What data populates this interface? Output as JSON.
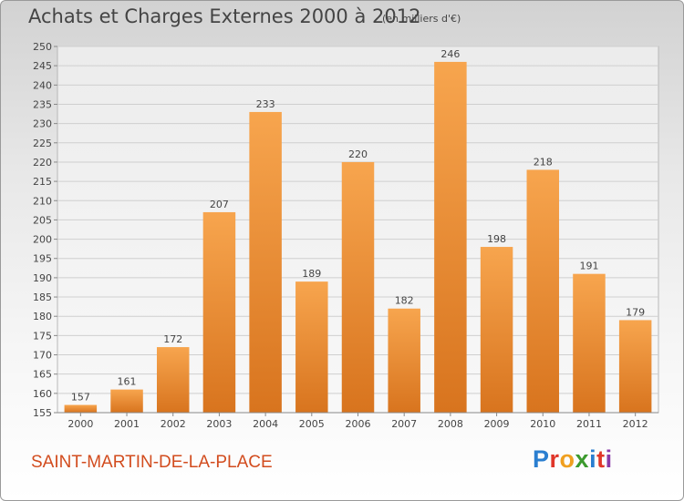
{
  "header": {
    "title": "Achats et Charges Externes 2000 à 2012",
    "subtitle": "(en milliers d'€)"
  },
  "footer": {
    "place": "SAINT-MARTIN-DE-LA-PLACE",
    "logo_letters": [
      "P",
      "r",
      "o",
      "x",
      "i",
      "t",
      "i"
    ]
  },
  "colors": {
    "bar_light": "#f7a54e",
    "bar_dark": "#d8741e",
    "place_text": "#d24c1e"
  },
  "chart_data": {
    "type": "bar",
    "title": "Achats et Charges Externes 2000 à 2012",
    "subtitle": "(en milliers d'€)",
    "categories": [
      "2000",
      "2001",
      "2002",
      "2003",
      "2004",
      "2005",
      "2006",
      "2007",
      "2008",
      "2009",
      "2010",
      "2011",
      "2012"
    ],
    "values": [
      157,
      161,
      172,
      207,
      233,
      189,
      220,
      182,
      246,
      198,
      218,
      191,
      179
    ],
    "ylim": [
      155,
      250
    ],
    "yticks": [
      155,
      160,
      165,
      170,
      175,
      180,
      185,
      190,
      195,
      200,
      205,
      210,
      215,
      220,
      225,
      230,
      235,
      240,
      245,
      250
    ],
    "grid": true,
    "data_labels": true
  }
}
